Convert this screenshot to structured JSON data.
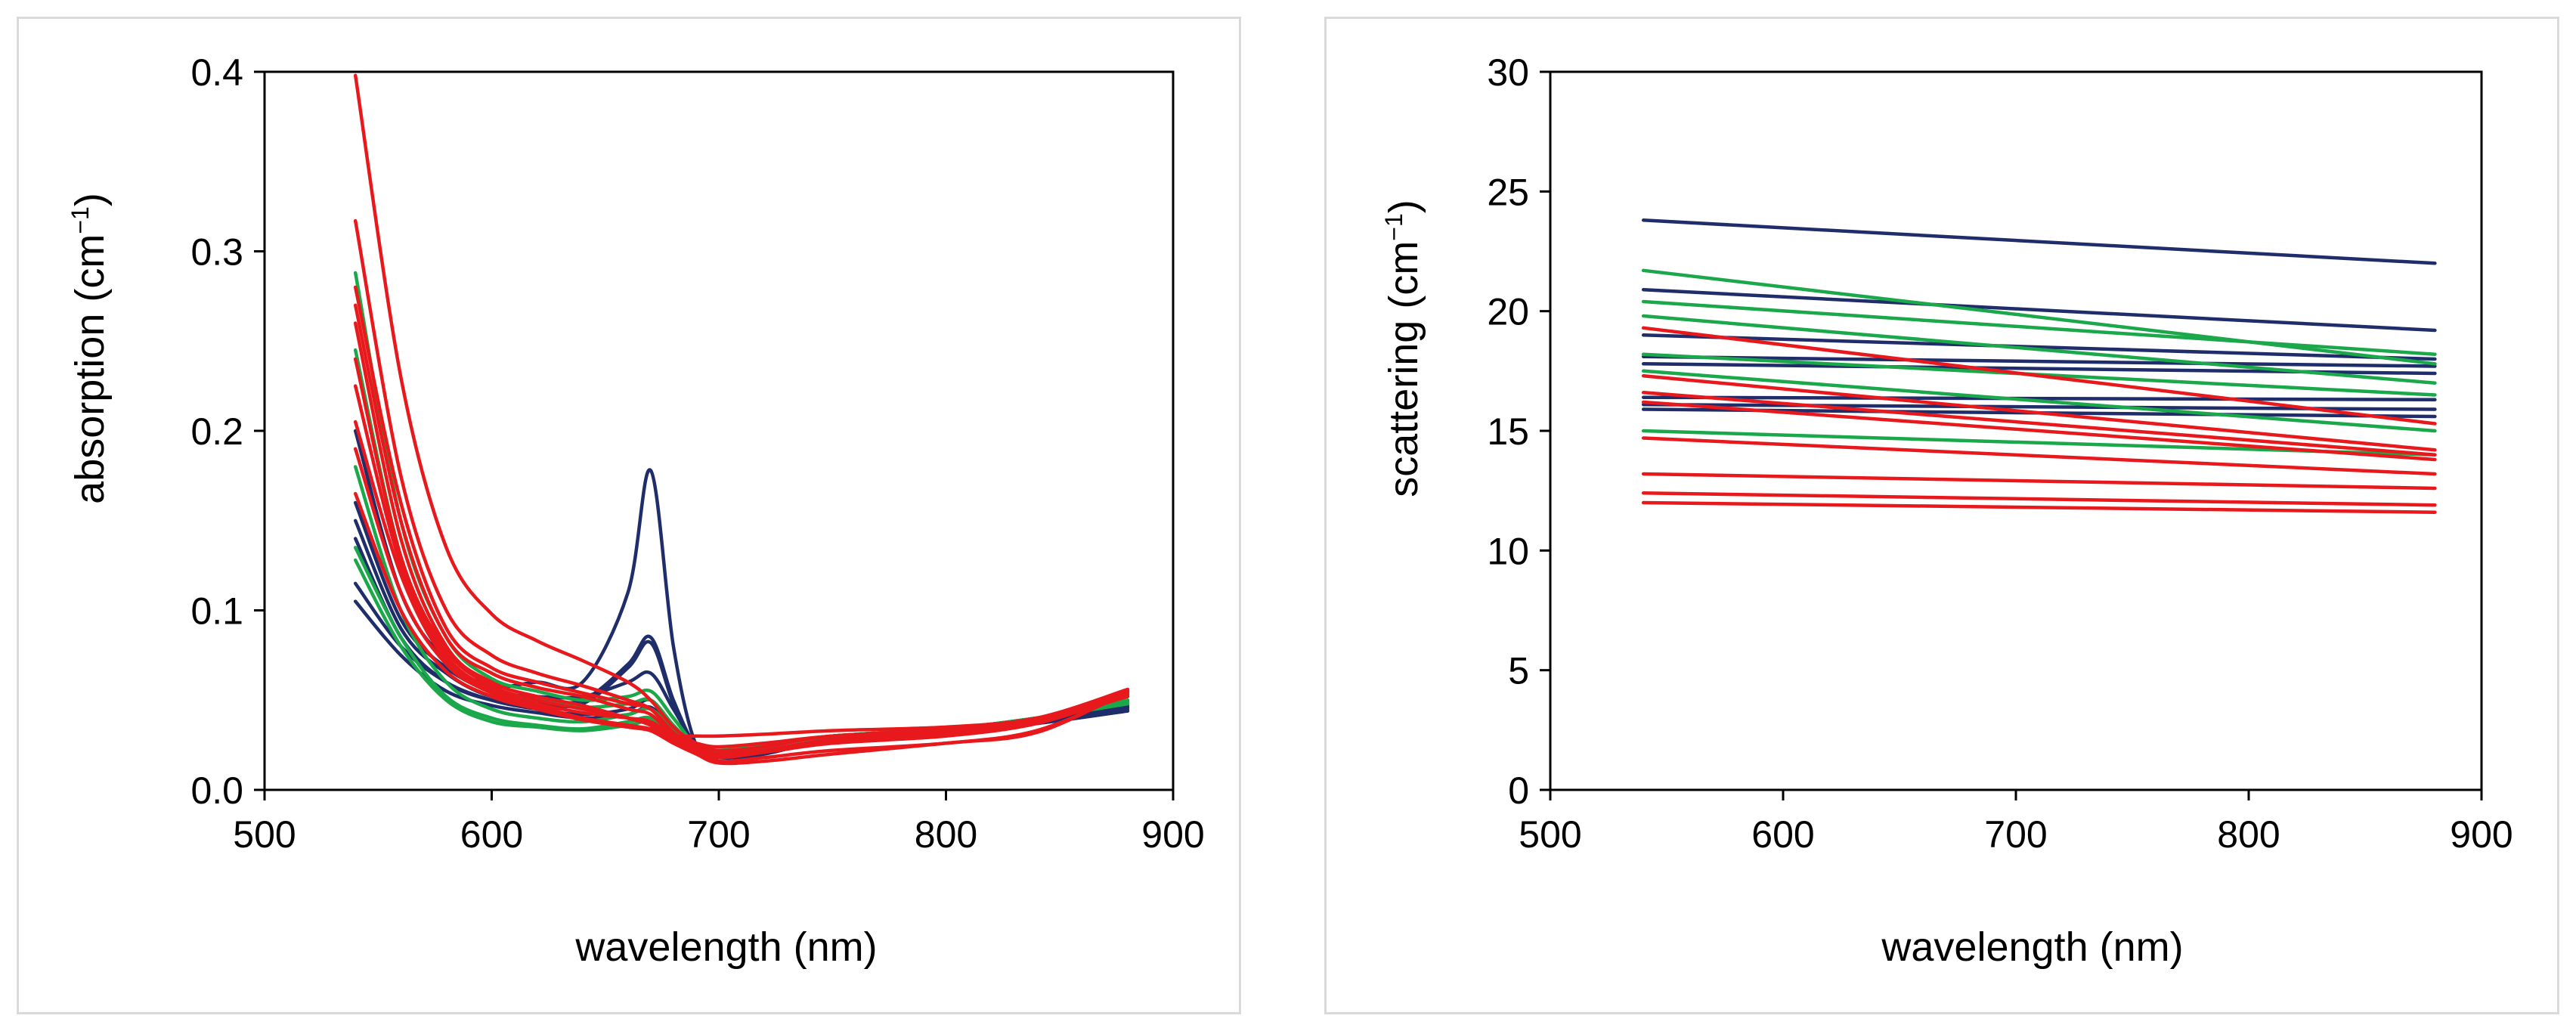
{
  "colors": {
    "navy": "#1f2d6b",
    "green": "#1aa84a",
    "red": "#e8191c",
    "frame": "#000000",
    "border": "#d9d9d9"
  },
  "chart_data": [
    {
      "type": "line",
      "title": "",
      "xlabel": "wavelength (nm)",
      "ylabel_main": "absorption (cm",
      "ylabel_sup": "−1",
      "ylabel_end": ")",
      "xlim": [
        500,
        900
      ],
      "ylim": [
        0,
        0.4
      ],
      "xticks": [
        500,
        600,
        700,
        800,
        900
      ],
      "yticks": [
        0,
        0.1,
        0.2,
        0.3,
        0.4
      ],
      "xtick_labels": [
        "500",
        "600",
        "700",
        "800",
        "900"
      ],
      "ytick_labels": [
        "0.0",
        "0.1",
        "0.2",
        "0.3",
        "0.4"
      ],
      "x": [
        540,
        560,
        580,
        600,
        620,
        640,
        660,
        670,
        680,
        690,
        700,
        720,
        750,
        800,
        840,
        880
      ],
      "series": [
        {
          "name": "navy-1",
          "color": "navy",
          "values": [
            0.2,
            0.11,
            0.072,
            0.058,
            0.06,
            0.06,
            0.11,
            0.178,
            0.08,
            0.025,
            0.02,
            0.022,
            0.028,
            0.032,
            0.038,
            0.046
          ]
        },
        {
          "name": "navy-2",
          "color": "navy",
          "values": [
            0.15,
            0.09,
            0.065,
            0.052,
            0.05,
            0.05,
            0.07,
            0.085,
            0.05,
            0.024,
            0.018,
            0.02,
            0.028,
            0.032,
            0.038,
            0.046
          ]
        },
        {
          "name": "navy-3",
          "color": "navy",
          "values": [
            0.14,
            0.085,
            0.06,
            0.05,
            0.048,
            0.048,
            0.068,
            0.082,
            0.048,
            0.023,
            0.018,
            0.02,
            0.028,
            0.032,
            0.038,
            0.045
          ]
        },
        {
          "name": "navy-4",
          "color": "navy",
          "values": [
            0.115,
            0.08,
            0.06,
            0.05,
            0.045,
            0.042,
            0.045,
            0.05,
            0.035,
            0.023,
            0.02,
            0.022,
            0.028,
            0.032,
            0.037,
            0.044
          ]
        },
        {
          "name": "navy-5",
          "color": "navy",
          "values": [
            0.105,
            0.075,
            0.055,
            0.047,
            0.043,
            0.04,
            0.042,
            0.046,
            0.033,
            0.022,
            0.02,
            0.022,
            0.028,
            0.032,
            0.037,
            0.044
          ]
        },
        {
          "name": "navy-6",
          "color": "navy",
          "values": [
            0.16,
            0.095,
            0.068,
            0.055,
            0.052,
            0.052,
            0.06,
            0.065,
            0.045,
            0.025,
            0.02,
            0.022,
            0.028,
            0.033,
            0.039,
            0.047
          ]
        },
        {
          "name": "green-1",
          "color": "green",
          "values": [
            0.288,
            0.15,
            0.085,
            0.062,
            0.055,
            0.05,
            0.052,
            0.055,
            0.04,
            0.025,
            0.022,
            0.025,
            0.03,
            0.034,
            0.04,
            0.05
          ]
        },
        {
          "name": "green-2",
          "color": "green",
          "values": [
            0.245,
            0.13,
            0.075,
            0.055,
            0.05,
            0.046,
            0.048,
            0.05,
            0.036,
            0.024,
            0.022,
            0.025,
            0.03,
            0.034,
            0.04,
            0.049
          ]
        },
        {
          "name": "green-3",
          "color": "green",
          "values": [
            0.18,
            0.1,
            0.06,
            0.045,
            0.04,
            0.038,
            0.042,
            0.045,
            0.033,
            0.023,
            0.021,
            0.024,
            0.03,
            0.034,
            0.04,
            0.049
          ]
        },
        {
          "name": "green-4",
          "color": "green",
          "values": [
            0.135,
            0.085,
            0.052,
            0.04,
            0.036,
            0.034,
            0.038,
            0.04,
            0.03,
            0.022,
            0.021,
            0.024,
            0.03,
            0.034,
            0.04,
            0.048
          ]
        },
        {
          "name": "green-5",
          "color": "green",
          "values": [
            0.128,
            0.08,
            0.05,
            0.038,
            0.035,
            0.033,
            0.036,
            0.038,
            0.029,
            0.022,
            0.021,
            0.024,
            0.03,
            0.034,
            0.04,
            0.048
          ]
        },
        {
          "name": "red-1",
          "color": "red",
          "values": [
            0.398,
            0.23,
            0.135,
            0.098,
            0.083,
            0.072,
            0.06,
            0.05,
            0.035,
            0.026,
            0.022,
            0.024,
            0.03,
            0.033,
            0.04,
            0.052
          ]
        },
        {
          "name": "red-2",
          "color": "red",
          "values": [
            0.317,
            0.175,
            0.1,
            0.075,
            0.065,
            0.058,
            0.05,
            0.045,
            0.032,
            0.024,
            0.02,
            0.022,
            0.028,
            0.032,
            0.038,
            0.052
          ]
        },
        {
          "name": "red-3",
          "color": "red",
          "values": [
            0.28,
            0.16,
            0.09,
            0.068,
            0.06,
            0.054,
            0.048,
            0.045,
            0.032,
            0.024,
            0.02,
            0.022,
            0.028,
            0.032,
            0.038,
            0.053
          ]
        },
        {
          "name": "red-4",
          "color": "red",
          "values": [
            0.27,
            0.15,
            0.085,
            0.065,
            0.057,
            0.052,
            0.045,
            0.042,
            0.03,
            0.023,
            0.019,
            0.021,
            0.026,
            0.03,
            0.037,
            0.053
          ]
        },
        {
          "name": "red-5",
          "color": "red",
          "values": [
            0.26,
            0.14,
            0.08,
            0.06,
            0.052,
            0.047,
            0.04,
            0.036,
            0.028,
            0.022,
            0.016,
            0.018,
            0.022,
            0.026,
            0.033,
            0.054
          ]
        },
        {
          "name": "red-6",
          "color": "red",
          "values": [
            0.24,
            0.13,
            0.078,
            0.058,
            0.05,
            0.045,
            0.04,
            0.036,
            0.028,
            0.022,
            0.018,
            0.021,
            0.027,
            0.031,
            0.037,
            0.054
          ]
        },
        {
          "name": "red-7",
          "color": "red",
          "values": [
            0.225,
            0.125,
            0.075,
            0.056,
            0.048,
            0.043,
            0.04,
            0.038,
            0.03,
            0.026,
            0.024,
            0.026,
            0.03,
            0.034,
            0.039,
            0.055
          ]
        },
        {
          "name": "red-8",
          "color": "red",
          "values": [
            0.205,
            0.12,
            0.072,
            0.055,
            0.047,
            0.04,
            0.036,
            0.033,
            0.026,
            0.02,
            0.015,
            0.016,
            0.02,
            0.026,
            0.032,
            0.055
          ]
        },
        {
          "name": "red-9",
          "color": "red",
          "values": [
            0.19,
            0.11,
            0.07,
            0.054,
            0.046,
            0.04,
            0.036,
            0.034,
            0.03,
            0.03,
            0.03,
            0.031,
            0.033,
            0.035,
            0.04,
            0.056
          ]
        },
        {
          "name": "red-10",
          "color": "red",
          "values": [
            0.165,
            0.1,
            0.066,
            0.052,
            0.045,
            0.039,
            0.035,
            0.033,
            0.027,
            0.023,
            0.02,
            0.022,
            0.027,
            0.031,
            0.037,
            0.055
          ]
        }
      ]
    },
    {
      "type": "line",
      "title": "",
      "xlabel": "wavelength (nm)",
      "ylabel_main": "scattering (cm",
      "ylabel_sup": "−1",
      "ylabel_end": ")",
      "xlim": [
        500,
        900
      ],
      "ylim": [
        0,
        30
      ],
      "xticks": [
        500,
        600,
        700,
        800,
        900
      ],
      "yticks": [
        0,
        5,
        10,
        15,
        20,
        25,
        30
      ],
      "xtick_labels": [
        "500",
        "600",
        "700",
        "800",
        "900"
      ],
      "ytick_labels": [
        "0",
        "5",
        "10",
        "15",
        "20",
        "25",
        "30"
      ],
      "x": [
        540,
        880
      ],
      "series": [
        {
          "name": "navy-1",
          "color": "navy",
          "values": [
            23.8,
            22.0
          ]
        },
        {
          "name": "navy-2",
          "color": "navy",
          "values": [
            20.9,
            19.2
          ]
        },
        {
          "name": "navy-3",
          "color": "navy",
          "values": [
            19.0,
            18.0
          ]
        },
        {
          "name": "navy-4",
          "color": "navy",
          "values": [
            18.1,
            17.7
          ]
        },
        {
          "name": "navy-5",
          "color": "navy",
          "values": [
            17.8,
            17.4
          ]
        },
        {
          "name": "navy-6",
          "color": "navy",
          "values": [
            16.4,
            16.3
          ]
        },
        {
          "name": "navy-7",
          "color": "navy",
          "values": [
            16.1,
            15.9
          ]
        },
        {
          "name": "navy-8",
          "color": "navy",
          "values": [
            15.9,
            15.6
          ]
        },
        {
          "name": "green-1",
          "color": "green",
          "values": [
            21.7,
            17.8
          ]
        },
        {
          "name": "green-2",
          "color": "green",
          "values": [
            20.4,
            18.2
          ]
        },
        {
          "name": "green-3",
          "color": "green",
          "values": [
            19.8,
            17.0
          ]
        },
        {
          "name": "green-4",
          "color": "green",
          "values": [
            18.2,
            16.5
          ]
        },
        {
          "name": "green-5",
          "color": "green",
          "values": [
            17.5,
            15.0
          ]
        },
        {
          "name": "green-6",
          "color": "green",
          "values": [
            15.0,
            14.0
          ]
        },
        {
          "name": "red-1",
          "color": "red",
          "values": [
            19.3,
            15.3
          ]
        },
        {
          "name": "red-2",
          "color": "red",
          "values": [
            17.3,
            14.2
          ]
        },
        {
          "name": "red-3",
          "color": "red",
          "values": [
            16.6,
            14.0
          ]
        },
        {
          "name": "red-4",
          "color": "red",
          "values": [
            16.2,
            13.8
          ]
        },
        {
          "name": "red-5",
          "color": "red",
          "values": [
            14.7,
            13.2
          ]
        },
        {
          "name": "red-6",
          "color": "red",
          "values": [
            13.2,
            12.6
          ]
        },
        {
          "name": "red-7",
          "color": "red",
          "values": [
            12.4,
            11.9
          ]
        },
        {
          "name": "red-8",
          "color": "red",
          "values": [
            12.0,
            11.6
          ]
        }
      ]
    }
  ]
}
